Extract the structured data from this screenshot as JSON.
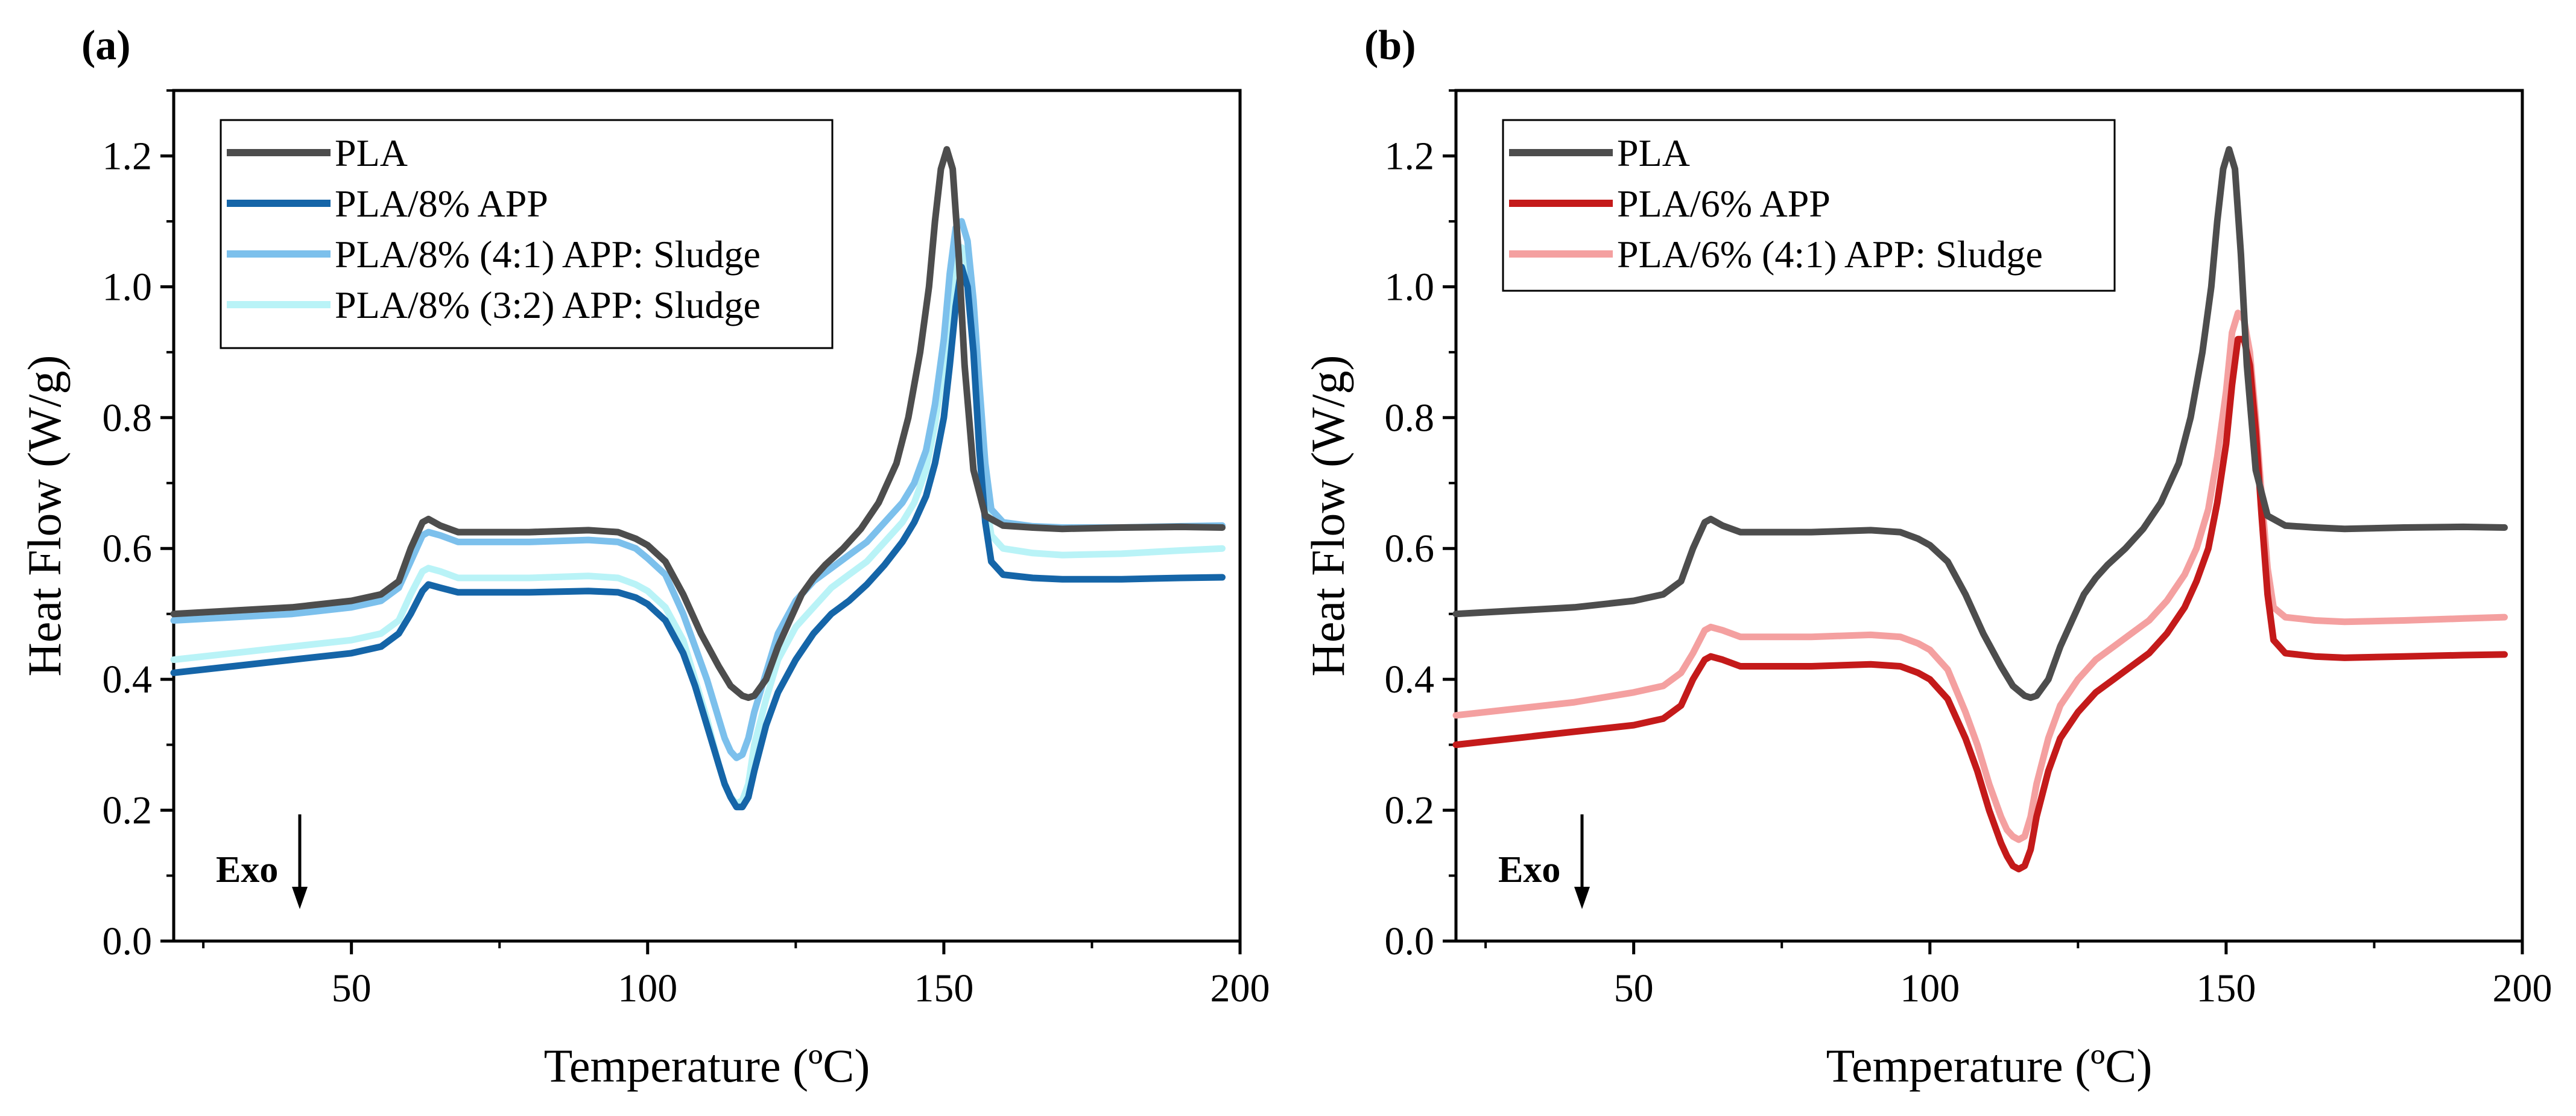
{
  "chart_data": [
    {
      "type": "line",
      "panel_label": "(a)",
      "xlabel": "Temperature (ºC)",
      "ylabel": "Heat Flow (W/g)",
      "xlim": [
        20,
        200
      ],
      "ylim": [
        0,
        1.3
      ],
      "xticks": [
        50,
        100,
        150,
        200
      ],
      "yticks": [
        0.0,
        0.2,
        0.4,
        0.6,
        0.8,
        1.0,
        1.2
      ],
      "annotation": "Exo",
      "legend_position": "top-left",
      "series": [
        {
          "name": "PLA",
          "color": "#4d4d4d",
          "x": [
            20,
            30,
            40,
            50,
            55,
            58,
            60,
            62,
            63,
            65,
            68,
            72,
            80,
            90,
            95,
            98,
            100,
            103,
            106,
            109,
            112,
            114,
            116,
            117,
            118,
            120,
            122,
            124,
            126,
            128,
            130,
            133,
            136,
            139,
            142,
            144,
            146,
            147.5,
            148.5,
            149.5,
            150.5,
            151.5,
            152.5,
            153.5,
            155,
            157,
            160,
            165,
            170,
            180,
            190,
            197
          ],
          "y": [
            0.5,
            0.505,
            0.51,
            0.52,
            0.53,
            0.55,
            0.6,
            0.64,
            0.645,
            0.635,
            0.625,
            0.625,
            0.625,
            0.628,
            0.625,
            0.615,
            0.605,
            0.58,
            0.53,
            0.47,
            0.42,
            0.39,
            0.375,
            0.372,
            0.375,
            0.4,
            0.45,
            0.49,
            0.53,
            0.555,
            0.575,
            0.6,
            0.63,
            0.67,
            0.73,
            0.8,
            0.9,
            1.0,
            1.1,
            1.18,
            1.21,
            1.18,
            1.05,
            0.88,
            0.72,
            0.65,
            0.635,
            0.632,
            0.63,
            0.632,
            0.633,
            0.632
          ]
        },
        {
          "name": "PLA/8% APP",
          "color": "#1565a8",
          "x": [
            20,
            30,
            40,
            50,
            55,
            58,
            60,
            62,
            63,
            65,
            68,
            72,
            80,
            90,
            95,
            98,
            100,
            103,
            106,
            108,
            110,
            112,
            113,
            114,
            115,
            116,
            117,
            118,
            120,
            122,
            125,
            128,
            131,
            134,
            137,
            140,
            143,
            145,
            147,
            148.5,
            150,
            151,
            152,
            153,
            154,
            155,
            156,
            157,
            158,
            160,
            165,
            170,
            180,
            190,
            197
          ],
          "y": [
            0.41,
            0.42,
            0.43,
            0.44,
            0.45,
            0.47,
            0.5,
            0.535,
            0.545,
            0.54,
            0.533,
            0.533,
            0.533,
            0.535,
            0.533,
            0.525,
            0.515,
            0.49,
            0.44,
            0.39,
            0.33,
            0.27,
            0.24,
            0.22,
            0.205,
            0.205,
            0.22,
            0.26,
            0.33,
            0.38,
            0.43,
            0.47,
            0.5,
            0.52,
            0.545,
            0.575,
            0.61,
            0.64,
            0.68,
            0.73,
            0.8,
            0.88,
            0.97,
            1.03,
            1.0,
            0.9,
            0.75,
            0.64,
            0.58,
            0.56,
            0.555,
            0.553,
            0.553,
            0.555,
            0.556
          ]
        },
        {
          "name": "PLA/8% (4:1) APP: Sludge",
          "color": "#7cc0ec",
          "x": [
            20,
            30,
            40,
            50,
            55,
            58,
            60,
            62,
            63,
            65,
            68,
            72,
            80,
            90,
            95,
            98,
            100,
            103,
            106,
            108,
            110,
            112,
            113,
            114,
            115,
            116,
            117,
            118,
            120,
            122,
            125,
            128,
            131,
            134,
            137,
            140,
            143,
            145,
            147,
            148.5,
            150,
            151,
            152,
            153,
            154,
            155,
            156,
            157,
            158,
            160,
            165,
            170,
            180,
            190,
            197
          ],
          "y": [
            0.49,
            0.495,
            0.5,
            0.51,
            0.52,
            0.54,
            0.58,
            0.62,
            0.625,
            0.62,
            0.61,
            0.61,
            0.61,
            0.613,
            0.61,
            0.6,
            0.585,
            0.56,
            0.5,
            0.45,
            0.4,
            0.34,
            0.31,
            0.29,
            0.28,
            0.285,
            0.31,
            0.35,
            0.41,
            0.47,
            0.52,
            0.55,
            0.57,
            0.59,
            0.61,
            0.64,
            0.67,
            0.7,
            0.75,
            0.82,
            0.92,
            1.02,
            1.09,
            1.1,
            1.07,
            0.98,
            0.85,
            0.73,
            0.66,
            0.64,
            0.634,
            0.632,
            0.632,
            0.634,
            0.635
          ]
        },
        {
          "name": "PLA/8% (3:2) APP: Sludge",
          "color": "#b9f3f7",
          "x": [
            20,
            30,
            40,
            50,
            55,
            58,
            60,
            62,
            63,
            65,
            68,
            72,
            80,
            90,
            95,
            98,
            100,
            103,
            106,
            108,
            110,
            112,
            113,
            114,
            115,
            116,
            117,
            118,
            120,
            122,
            125,
            128,
            131,
            134,
            137,
            140,
            143,
            145,
            147,
            148.5,
            150,
            151,
            152,
            153,
            154,
            155,
            156,
            157,
            158,
            160,
            165,
            170,
            180,
            190,
            197
          ],
          "y": [
            0.43,
            0.44,
            0.45,
            0.46,
            0.47,
            0.49,
            0.53,
            0.565,
            0.57,
            0.565,
            0.555,
            0.555,
            0.555,
            0.558,
            0.555,
            0.545,
            0.535,
            0.51,
            0.46,
            0.4,
            0.34,
            0.27,
            0.24,
            0.22,
            0.21,
            0.215,
            0.24,
            0.3,
            0.37,
            0.43,
            0.48,
            0.51,
            0.54,
            0.56,
            0.58,
            0.61,
            0.64,
            0.67,
            0.72,
            0.79,
            0.88,
            0.97,
            1.04,
            1.06,
            1.03,
            0.94,
            0.8,
            0.68,
            0.62,
            0.6,
            0.593,
            0.59,
            0.592,
            0.597,
            0.6
          ]
        }
      ]
    },
    {
      "type": "line",
      "panel_label": "(b)",
      "xlabel": "Temperature (ºC)",
      "ylabel": "Heat Flow (W/g)",
      "xlim": [
        20,
        200
      ],
      "ylim": [
        0,
        1.3
      ],
      "xticks": [
        50,
        100,
        150,
        200
      ],
      "yticks": [
        0.0,
        0.2,
        0.4,
        0.6,
        0.8,
        1.0,
        1.2
      ],
      "annotation": "Exo",
      "legend_position": "top-left",
      "series": [
        {
          "name": "PLA",
          "color": "#4d4d4d",
          "x": [
            20,
            30,
            40,
            50,
            55,
            58,
            60,
            62,
            63,
            65,
            68,
            72,
            80,
            90,
            95,
            98,
            100,
            103,
            106,
            109,
            112,
            114,
            116,
            117,
            118,
            120,
            122,
            124,
            126,
            128,
            130,
            133,
            136,
            139,
            142,
            144,
            146,
            147.5,
            148.5,
            149.5,
            150.5,
            151.5,
            152.5,
            153.5,
            155,
            157,
            160,
            165,
            170,
            180,
            190,
            197
          ],
          "y": [
            0.5,
            0.505,
            0.51,
            0.52,
            0.53,
            0.55,
            0.6,
            0.64,
            0.645,
            0.635,
            0.625,
            0.625,
            0.625,
            0.628,
            0.625,
            0.615,
            0.605,
            0.58,
            0.53,
            0.47,
            0.42,
            0.39,
            0.375,
            0.372,
            0.375,
            0.4,
            0.45,
            0.49,
            0.53,
            0.555,
            0.575,
            0.6,
            0.63,
            0.67,
            0.73,
            0.8,
            0.9,
            1.0,
            1.1,
            1.18,
            1.21,
            1.18,
            1.05,
            0.88,
            0.72,
            0.65,
            0.635,
            0.632,
            0.63,
            0.632,
            0.633,
            0.632
          ]
        },
        {
          "name": "PLA/6% APP",
          "color": "#c41a1a",
          "x": [
            20,
            30,
            40,
            50,
            55,
            58,
            60,
            62,
            63,
            65,
            68,
            72,
            80,
            90,
            95,
            98,
            100,
            103,
            106,
            108,
            110,
            112,
            113,
            114,
            115,
            116,
            117,
            118,
            120,
            122,
            125,
            128,
            131,
            134,
            137,
            140,
            143,
            145,
            147,
            148.5,
            150,
            151,
            152,
            153,
            154,
            155,
            156,
            157,
            158,
            160,
            165,
            170,
            180,
            190,
            197
          ],
          "y": [
            0.3,
            0.31,
            0.32,
            0.33,
            0.34,
            0.36,
            0.4,
            0.43,
            0.435,
            0.43,
            0.42,
            0.42,
            0.42,
            0.423,
            0.42,
            0.41,
            0.4,
            0.37,
            0.31,
            0.26,
            0.2,
            0.15,
            0.13,
            0.115,
            0.11,
            0.115,
            0.14,
            0.19,
            0.26,
            0.31,
            0.35,
            0.38,
            0.4,
            0.42,
            0.44,
            0.47,
            0.51,
            0.55,
            0.6,
            0.67,
            0.76,
            0.85,
            0.92,
            0.92,
            0.88,
            0.78,
            0.65,
            0.53,
            0.46,
            0.44,
            0.435,
            0.433,
            0.435,
            0.437,
            0.438
          ]
        },
        {
          "name": "PLA/6% (4:1) APP: Sludge",
          "color": "#f4a0a0",
          "x": [
            20,
            30,
            40,
            50,
            55,
            58,
            60,
            62,
            63,
            65,
            68,
            72,
            80,
            90,
            95,
            98,
            100,
            103,
            106,
            108,
            110,
            112,
            113,
            114,
            115,
            116,
            117,
            118,
            120,
            122,
            125,
            128,
            131,
            134,
            137,
            140,
            143,
            145,
            147,
            148.5,
            150,
            151,
            152,
            153,
            154,
            155,
            156,
            157,
            158,
            160,
            165,
            170,
            180,
            190,
            197
          ],
          "y": [
            0.345,
            0.355,
            0.365,
            0.38,
            0.39,
            0.41,
            0.44,
            0.475,
            0.48,
            0.475,
            0.465,
            0.465,
            0.465,
            0.468,
            0.465,
            0.455,
            0.445,
            0.415,
            0.35,
            0.3,
            0.24,
            0.19,
            0.17,
            0.16,
            0.155,
            0.16,
            0.19,
            0.24,
            0.31,
            0.36,
            0.4,
            0.43,
            0.45,
            0.47,
            0.49,
            0.52,
            0.56,
            0.6,
            0.66,
            0.74,
            0.84,
            0.93,
            0.96,
            0.95,
            0.9,
            0.8,
            0.68,
            0.57,
            0.51,
            0.495,
            0.49,
            0.488,
            0.49,
            0.493,
            0.495
          ]
        }
      ]
    }
  ]
}
